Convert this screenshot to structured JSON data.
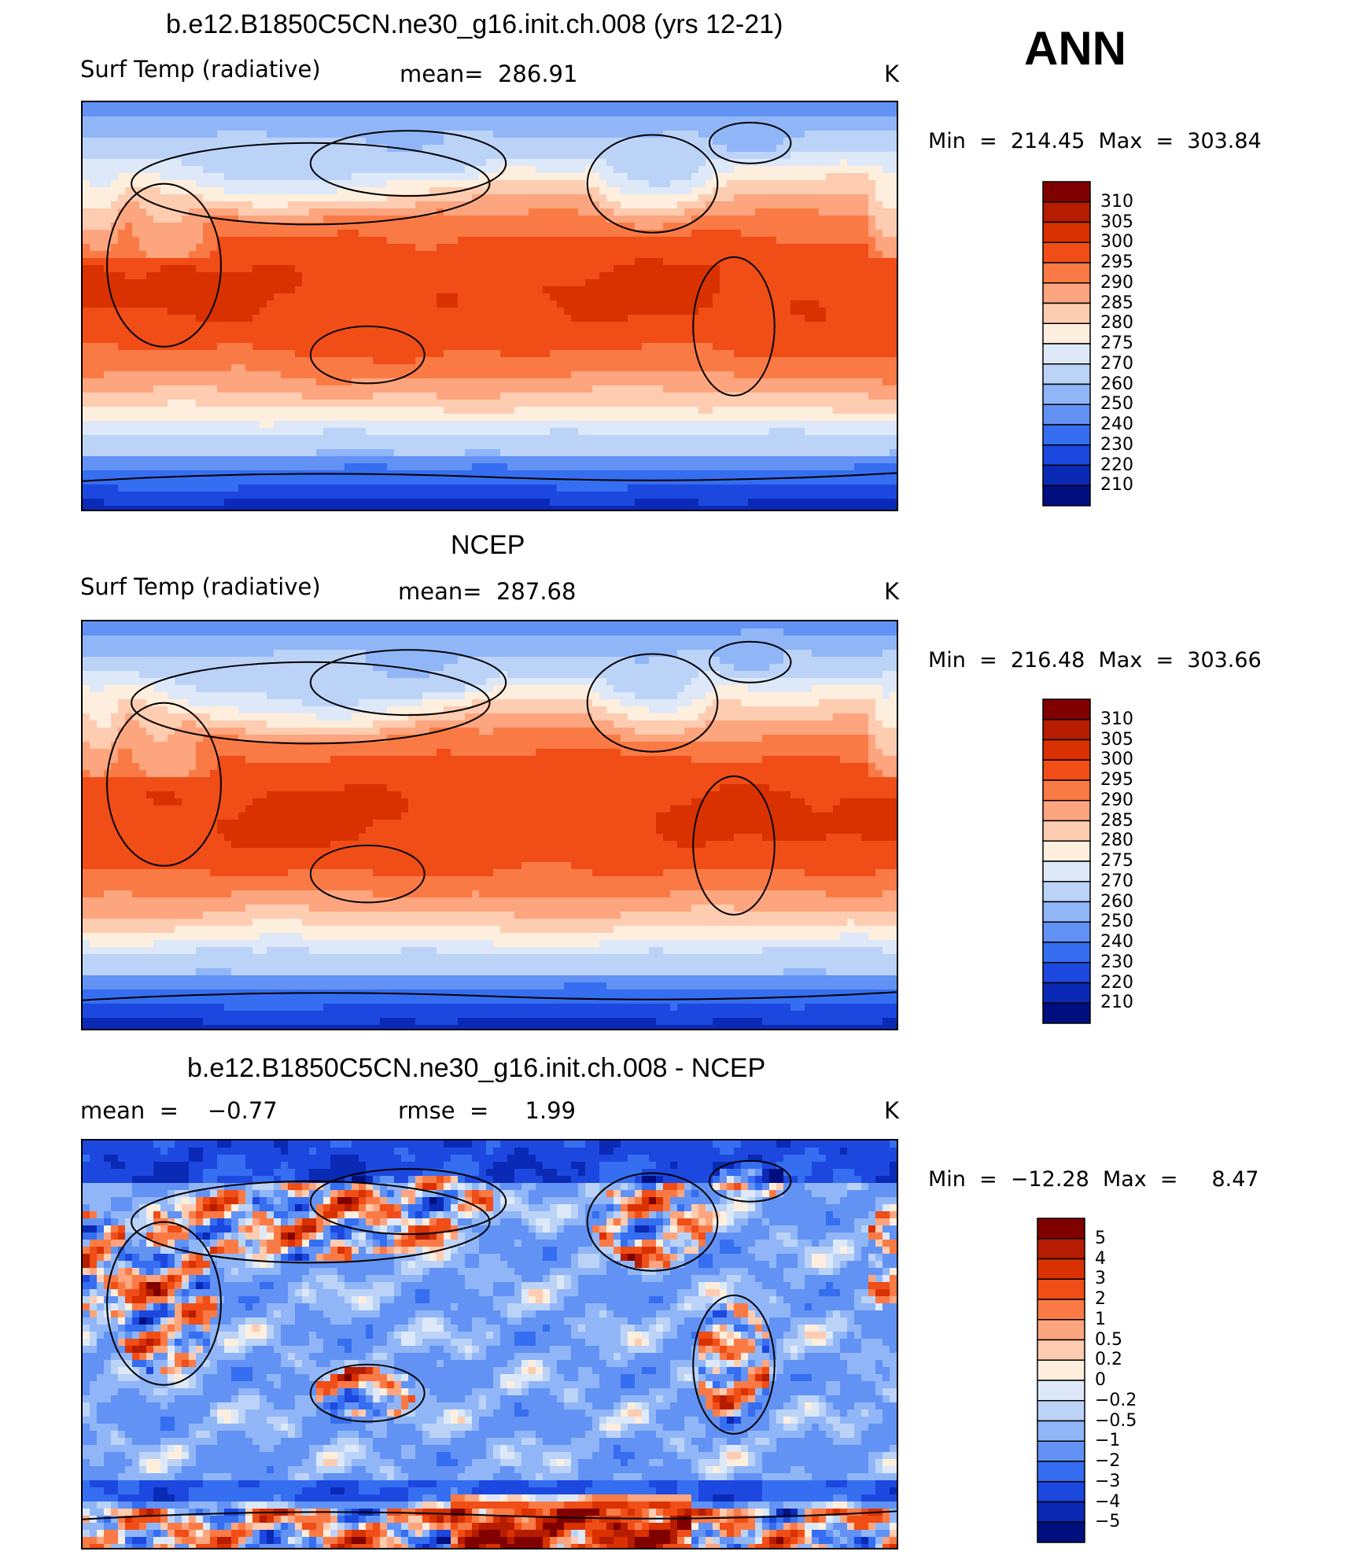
{
  "header": {
    "season": "ANN"
  },
  "chart_data": [
    {
      "type": "heatmap",
      "title": "b.e12.B1850C5CN.ne30_g16.init.ch.008 (yrs 12-21)",
      "variable": "Surf Temp (radiative)",
      "stat_text": "mean=  286.91",
      "units": "K",
      "minmax_text": "Min  =  214.45  Max  =  303.84",
      "min": 214.45,
      "max": 303.84,
      "colorbar_levels": [
        "310",
        "305",
        "300",
        "295",
        "290",
        "285",
        "280",
        "275",
        "270",
        "260",
        "250",
        "240",
        "230",
        "220",
        "210"
      ],
      "colorbar_colors": [
        "#800000",
        "#b61c00",
        "#d93200",
        "#f04d17",
        "#fa7a45",
        "#fca57e",
        "#fdccb1",
        "#feeedd",
        "#dde9f8",
        "#bcd3f8",
        "#90b6f8",
        "#6292f4",
        "#356ef0",
        "#1c48e0",
        "#0a2ab6",
        "#000f80"
      ],
      "scenario": "model"
    },
    {
      "type": "heatmap",
      "title": "NCEP",
      "variable": "Surf Temp (radiative)",
      "stat_text": "mean=  287.68",
      "units": "K",
      "minmax_text": "Min  =  216.48  Max  =  303.66",
      "min": 216.48,
      "max": 303.66,
      "colorbar_levels": [
        "310",
        "305",
        "300",
        "295",
        "290",
        "285",
        "280",
        "275",
        "270",
        "260",
        "250",
        "240",
        "230",
        "220",
        "210"
      ],
      "colorbar_colors": [
        "#800000",
        "#b61c00",
        "#d93200",
        "#f04d17",
        "#fa7a45",
        "#fca57e",
        "#fdccb1",
        "#feeedd",
        "#dde9f8",
        "#bcd3f8",
        "#90b6f8",
        "#6292f4",
        "#356ef0",
        "#1c48e0",
        "#0a2ab6",
        "#000f80"
      ],
      "scenario": "obs"
    },
    {
      "type": "heatmap",
      "title": "b.e12.B1850C5CN.ne30_g16.init.ch.008 - NCEP",
      "stat_text": "mean  =    −0.77",
      "stat2_text": "rmse  =     1.99",
      "units": "K",
      "minmax_text": "Min  =  −12.28  Max  =     8.47",
      "min": -12.28,
      "max": 8.47,
      "colorbar_levels": [
        "5",
        "4",
        "3",
        "2",
        "1",
        "0.5",
        "0.2",
        "0",
        "−0.2",
        "−0.5",
        "−1",
        "−2",
        "−3",
        "−4",
        "−5"
      ],
      "colorbar_colors": [
        "#800000",
        "#b61c00",
        "#d93200",
        "#f04d17",
        "#fa7a45",
        "#fca57e",
        "#fdccb1",
        "#feeedd",
        "#dde9f8",
        "#bcd3f8",
        "#90b6f8",
        "#6292f4",
        "#356ef0",
        "#1c48e0",
        "#0a2ab6",
        "#000f80"
      ],
      "scenario": "diff"
    }
  ]
}
